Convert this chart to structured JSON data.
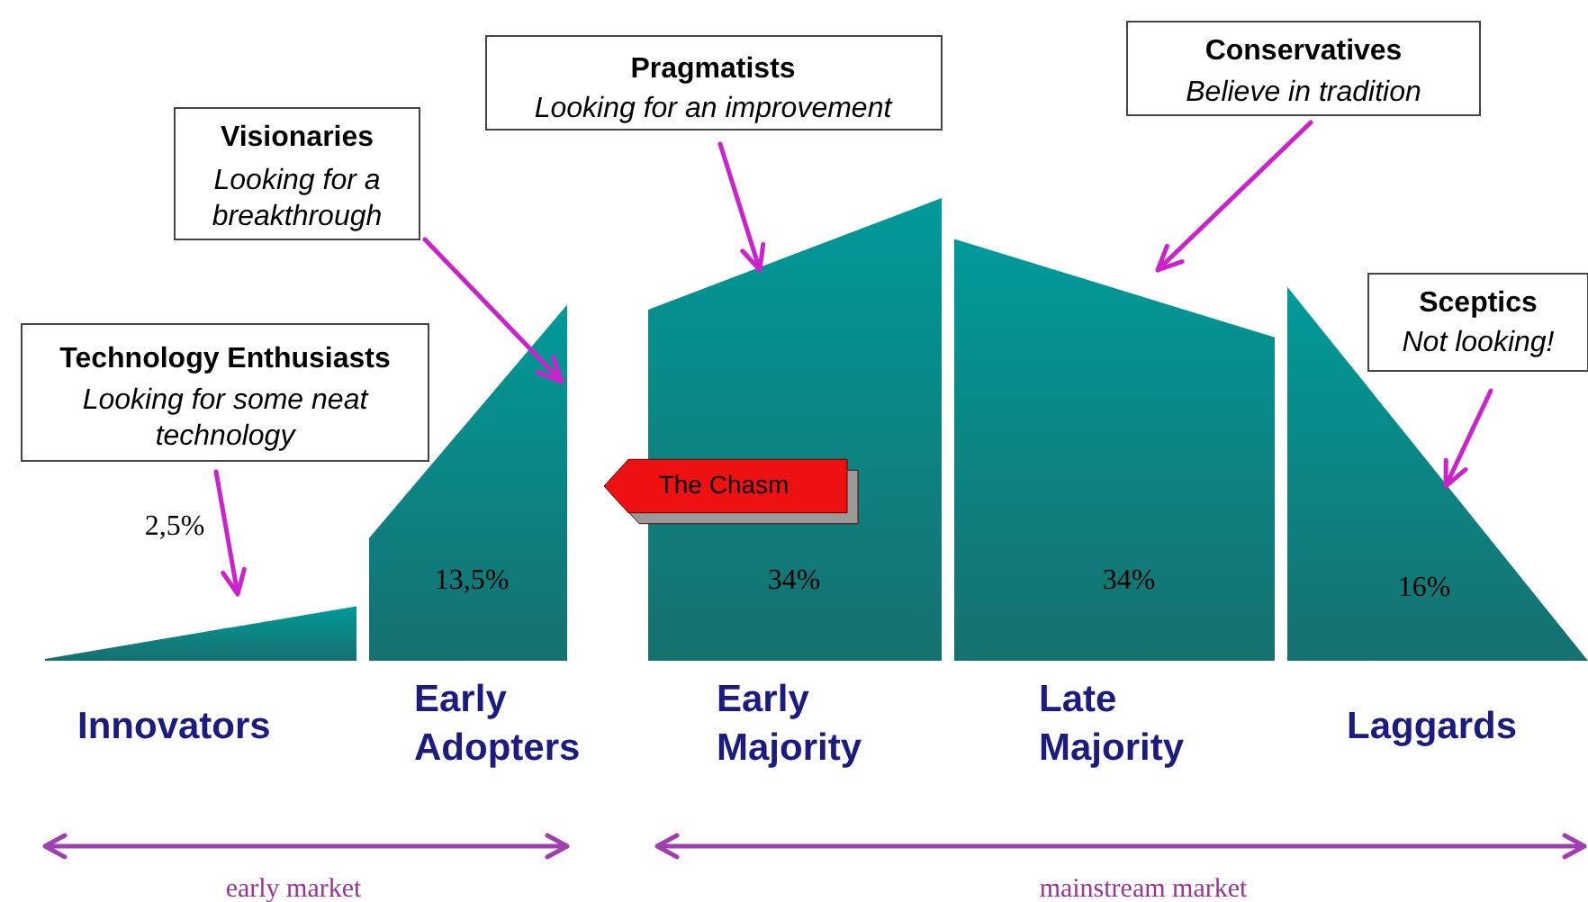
{
  "chart_data": {
    "type": "other",
    "categories": [
      "Innovators",
      "Early Adopters",
      "Early Majority",
      "Late Majority",
      "Laggards"
    ],
    "values": [
      2.5,
      13.5,
      34,
      34,
      16
    ],
    "value_labels": [
      "2,5%",
      "13,5%",
      "34%",
      "34%",
      "16%"
    ],
    "color": "#009a9a",
    "annotations": [
      "Technology Enthusiasts",
      "Looking for some neat technology",
      "Visionaries",
      "Looking for a breakthrough",
      "Pragmatists",
      "Looking for an improvement",
      "Conservatives",
      "Believe in tradition",
      "Sceptics",
      "Not looking!",
      "The Chasm",
      "early market",
      "mainstream market"
    ]
  }
}
